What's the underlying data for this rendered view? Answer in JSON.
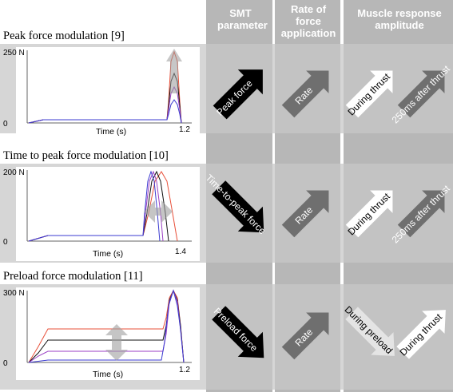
{
  "headers": {
    "smt_parameter": "SMT parameter",
    "rate_of_force_application": "Rate of force application",
    "muscle_response_amplitude": "Muscle response amplitude"
  },
  "rows": [
    {
      "title": "Peak force modulation [9]",
      "y_max_label": "250 N",
      "y_zero_label": "0",
      "x_axis_label": "Time (s)",
      "x_end_label": "1.2",
      "smt_arrow_text": "Peak force",
      "rate_arrow_text": "Rate",
      "muscle_arrow_1_text": "During thrust",
      "muscle_arrow_2_text": "250ms after thrust"
    },
    {
      "title": "Time to peak force modulation [10]",
      "y_max_label": "200 N",
      "y_zero_label": "0",
      "x_axis_label": "Time (s)",
      "x_end_label": "1.4",
      "smt_arrow_text": "Time-to-peak force",
      "rate_arrow_text": "Rate",
      "muscle_arrow_1_text": "During thrust",
      "muscle_arrow_2_text": "250ms after thrust"
    },
    {
      "title": "Preload force modulation [11]",
      "y_max_label": "300 N",
      "y_zero_label": "0",
      "x_axis_label": "Time (s)",
      "x_end_label": "1.2",
      "smt_arrow_text": "Preload force",
      "rate_arrow_text": "Rate",
      "muscle_arrow_1_text": "During preload",
      "muscle_arrow_2_text": "During thrust"
    }
  ],
  "colors": {
    "column_bg": "#c4c4c4",
    "band_bg": "#d6d6d6",
    "curve_red": "#e8503a",
    "curve_black": "#111111",
    "curve_blue": "#3b3bd0",
    "curve_purple": "#9b3fc4",
    "arrow_black": "#000000",
    "arrow_gray": "#6f6f6f",
    "arrow_white": "#ffffff"
  },
  "icons": {
    "modulation_arrow": "double-headed-gray-arrow"
  }
}
